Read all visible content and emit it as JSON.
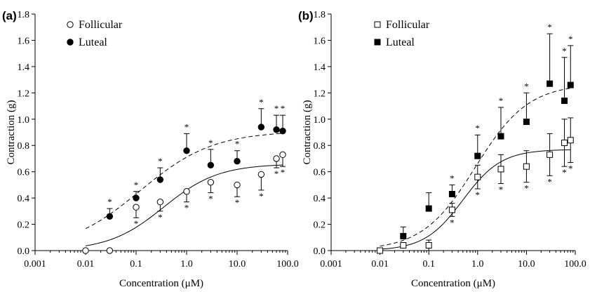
{
  "chart_data": [
    {
      "type": "scatter",
      "panel_label": "(a)",
      "xlabel": "Concentration (μM)",
      "ylabel": "Contraction (g)",
      "x_scale": "log",
      "xlim": [
        0.001,
        100
      ],
      "ylim": [
        0,
        1.8
      ],
      "x_tick_labels": [
        "0.001",
        "0.01",
        "0.1",
        "1.0",
        "10.0",
        "100.0"
      ],
      "y_tick_labels": [
        "0.0",
        "0.2",
        "0.4",
        "0.6",
        "0.8",
        "1.0",
        "1.2",
        "1.4",
        "1.6",
        "1.8"
      ],
      "legend_position": "top-left",
      "series": [
        {
          "name": "Follicular",
          "marker": "open-circle",
          "fit_line": "solid",
          "x": [
            0.01,
            0.03,
            0.1,
            0.3,
            1,
            3,
            10,
            30,
            60,
            80
          ],
          "y": [
            0.0,
            0.0,
            0.33,
            0.37,
            0.45,
            0.52,
            0.5,
            0.58,
            0.7,
            0.73
          ],
          "error": [
            0,
            0,
            0.08,
            0.07,
            0.08,
            0.08,
            0.09,
            0.12,
            0.07,
            0.09
          ],
          "error_direction": "down",
          "significant": [
            false,
            false,
            true,
            true,
            true,
            true,
            true,
            true,
            true,
            true
          ],
          "fit": {
            "bottom": 0.0,
            "top": 0.66,
            "ec50": 0.35,
            "hill": 0.8
          }
        },
        {
          "name": "Luteal",
          "marker": "filled-circle",
          "fit_line": "dashed",
          "x": [
            0.03,
            0.1,
            0.3,
            1,
            3,
            10,
            30,
            60,
            80
          ],
          "y": [
            0.26,
            0.4,
            0.54,
            0.76,
            0.65,
            0.68,
            0.94,
            0.92,
            0.91
          ],
          "error": [
            0.06,
            0.05,
            0.09,
            0.13,
            0.12,
            0.08,
            0.14,
            0.11,
            0.12
          ],
          "error_direction": "up",
          "significant": [
            true,
            true,
            true,
            true,
            true,
            true,
            true,
            true,
            true
          ],
          "fit": {
            "bottom": 0.0,
            "top": 0.91,
            "ec50": 0.12,
            "hill": 0.6
          }
        }
      ]
    },
    {
      "type": "scatter",
      "panel_label": "(b)",
      "xlabel": "Concentration (μM)",
      "ylabel": "Contraction (g)",
      "x_scale": "log",
      "xlim": [
        0.001,
        100
      ],
      "ylim": [
        0,
        1.8
      ],
      "x_tick_labels": [
        "0.001",
        "0.01",
        "0.1",
        "1.0",
        "10.0",
        "100.0"
      ],
      "y_tick_labels": [
        "0.0",
        "0.2",
        "0.4",
        "0.6",
        "0.8",
        "1.0",
        "1.2",
        "1.4",
        "1.6",
        "1.8"
      ],
      "legend_position": "top-left",
      "series": [
        {
          "name": "Follicular",
          "marker": "open-square",
          "fit_line": "solid",
          "x": [
            0.01,
            0.03,
            0.1,
            0.3,
            1,
            3,
            10,
            30,
            60,
            80
          ],
          "y": [
            0.0,
            0.04,
            0.04,
            0.31,
            0.56,
            0.62,
            0.64,
            0.73,
            0.82,
            0.84
          ],
          "error": [
            0,
            0.02,
            0.04,
            0.05,
            0.09,
            0.11,
            0.12,
            0.16,
            0.18,
            0.17
          ],
          "error_direction": "both",
          "significant": [
            false,
            false,
            false,
            true,
            true,
            true,
            true,
            true,
            true,
            true
          ],
          "fit": {
            "bottom": 0.0,
            "top": 0.77,
            "ec50": 0.5,
            "hill": 1.1
          }
        },
        {
          "name": "Luteal",
          "marker": "filled-square",
          "fit_line": "dashed",
          "x": [
            0.03,
            0.1,
            0.3,
            1,
            3,
            10,
            30,
            60,
            80
          ],
          "y": [
            0.11,
            0.32,
            0.43,
            0.72,
            0.87,
            0.98,
            1.27,
            1.14,
            1.26
          ],
          "error": [
            0.07,
            0.12,
            0.07,
            0.16,
            0.22,
            0.22,
            0.38,
            0.33,
            0.3
          ],
          "error_direction": "up",
          "significant": [
            false,
            false,
            true,
            true,
            true,
            true,
            true,
            true,
            true
          ],
          "fit": {
            "bottom": 0.0,
            "top": 1.27,
            "ec50": 0.9,
            "hill": 0.8
          }
        }
      ]
    }
  ]
}
